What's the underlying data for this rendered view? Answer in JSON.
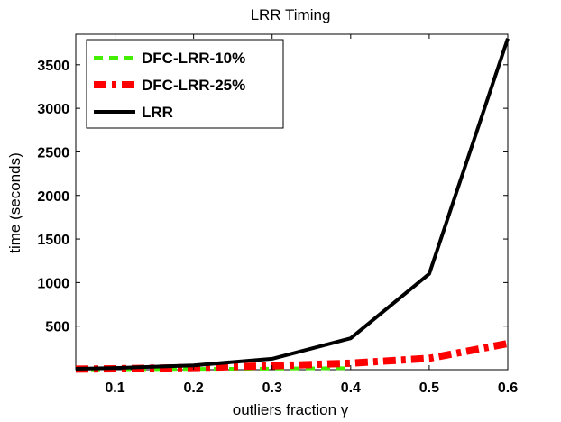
{
  "chart_data": {
    "type": "line",
    "title": "LRR Timing",
    "xlabel": "outliers fraction γ",
    "ylabel": "time (seconds)",
    "xlim": [
      0.05,
      0.6
    ],
    "ylim": [
      0,
      3850
    ],
    "xticks": [
      0.1,
      0.2,
      0.3,
      0.4,
      0.5,
      0.6
    ],
    "xtick_labels": [
      "0.1",
      "0.2",
      "0.3",
      "0.4",
      "0.5",
      "0.6"
    ],
    "yticks": [
      500,
      1000,
      1500,
      2000,
      2500,
      3000,
      3500
    ],
    "ytick_labels": [
      "500",
      "1000",
      "1500",
      "2000",
      "2500",
      "3000",
      "3500"
    ],
    "x": [
      0.05,
      0.1,
      0.2,
      0.3,
      0.4,
      0.5,
      0.6
    ],
    "series": [
      {
        "name": "DFC-LRR-10%",
        "color": "#44ee00",
        "style": "dashed",
        "values": [
          3,
          5,
          8,
          12,
          18,
          null,
          null
        ]
      },
      {
        "name": "DFC-LRR-25%",
        "color": "#ff0000",
        "style": "dashdot",
        "values": [
          6,
          10,
          25,
          45,
          75,
          130,
          300
        ]
      },
      {
        "name": "LRR",
        "color": "#000000",
        "style": "solid",
        "values": [
          10,
          20,
          50,
          125,
          360,
          1100,
          3800
        ]
      }
    ],
    "legend_position": "top-left",
    "grid": false
  }
}
